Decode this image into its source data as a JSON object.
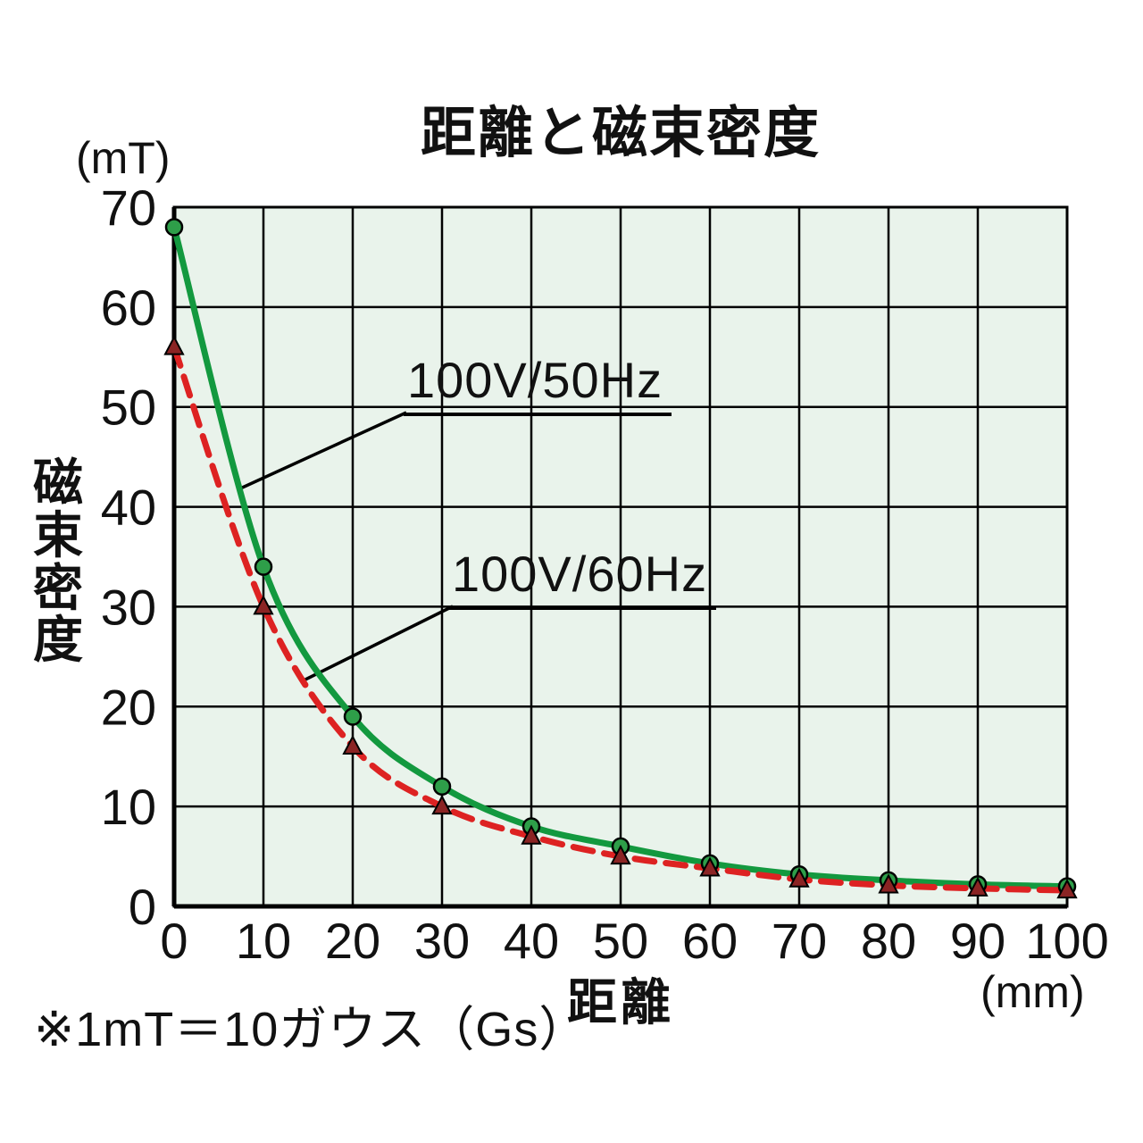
{
  "title": "距離と磁束密度",
  "y_axis_unit": "(mT)",
  "x_axis_unit": "(mm)",
  "ylabel_vertical": "磁束密度",
  "xlabel": "距離",
  "footnote": "※1mT＝10ガウス（Gs）",
  "chart_data": {
    "type": "line",
    "title": "距離と磁束密度",
    "xlabel": "距離 (mm)",
    "ylabel": "磁束密度 (mT)",
    "x": [
      0,
      10,
      20,
      30,
      40,
      50,
      60,
      70,
      80,
      90,
      100
    ],
    "x_ticks": [
      0,
      10,
      20,
      30,
      40,
      50,
      60,
      70,
      80,
      90,
      100
    ],
    "y_ticks": [
      0,
      10,
      20,
      30,
      40,
      50,
      60,
      70
    ],
    "xlim": [
      0,
      100
    ],
    "ylim": [
      0,
      70
    ],
    "grid": true,
    "plot_bg": "#e9f3eb",
    "grid_color": "#000000",
    "legend_position": "inline-callouts",
    "series": [
      {
        "name": "100V/50Hz",
        "color": "#13993f",
        "line_style": "solid",
        "marker": "circle",
        "marker_color": "#2e9e49",
        "values": [
          68,
          34,
          19,
          12,
          8,
          6,
          4.3,
          3.2,
          2.6,
          2.2,
          2
        ]
      },
      {
        "name": "100V/60Hz",
        "color": "#dd2222",
        "line_style": "dashed",
        "marker": "triangle",
        "marker_color": "#8b2424",
        "values": [
          56,
          30,
          16,
          10,
          7,
          5,
          3.8,
          2.7,
          2.1,
          1.8,
          1.6
        ]
      }
    ]
  }
}
